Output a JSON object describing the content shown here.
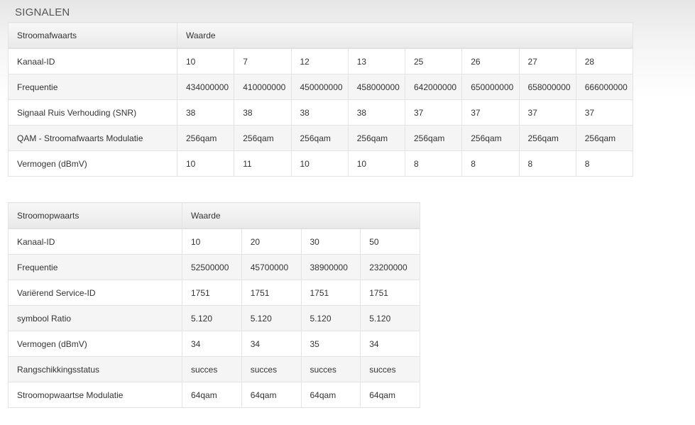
{
  "title": "SIGNALEN",
  "downstream": {
    "header": [
      "Stroomafwaarts",
      "Waarde"
    ],
    "rows": [
      {
        "label": "Kanaal-ID",
        "values": [
          "10",
          "7",
          "12",
          "13",
          "25",
          "26",
          "27",
          "28"
        ]
      },
      {
        "label": "Frequentie",
        "values": [
          "434000000",
          "410000000",
          "450000000",
          "458000000",
          "642000000",
          "650000000",
          "658000000",
          "666000000"
        ]
      },
      {
        "label": "Signaal Ruis Verhouding (SNR)",
        "values": [
          "38",
          "38",
          "38",
          "38",
          "37",
          "37",
          "37",
          "37"
        ]
      },
      {
        "label": "QAM - Stroomafwaarts Modulatie",
        "values": [
          "256qam",
          "256qam",
          "256qam",
          "256qam",
          "256qam",
          "256qam",
          "256qam",
          "256qam"
        ]
      },
      {
        "label": "Vermogen (dBmV)",
        "values": [
          "10",
          "11",
          "10",
          "10",
          "8",
          "8",
          "8",
          "8"
        ]
      }
    ]
  },
  "upstream": {
    "header": [
      "Stroomopwaarts",
      "Waarde"
    ],
    "rows": [
      {
        "label": "Kanaal-ID",
        "values": [
          "10",
          "20",
          "30",
          "50"
        ]
      },
      {
        "label": "Frequentie",
        "values": [
          "52500000",
          "45700000",
          "38900000",
          "23200000"
        ]
      },
      {
        "label": "Variërend Service-ID",
        "values": [
          "1751",
          "1751",
          "1751",
          "1751"
        ]
      },
      {
        "label": "symbool Ratio",
        "values": [
          "5.120",
          "5.120",
          "5.120",
          "5.120"
        ]
      },
      {
        "label": "Vermogen (dBmV)",
        "values": [
          "34",
          "34",
          "35",
          "34"
        ]
      },
      {
        "label": "Rangschikkingsstatus",
        "values": [
          "succes",
          "succes",
          "succes",
          "succes"
        ]
      },
      {
        "label": "Stroomopwaartse Modulatie",
        "values": [
          "64qam",
          "64qam",
          "64qam",
          "64qam"
        ]
      }
    ]
  }
}
